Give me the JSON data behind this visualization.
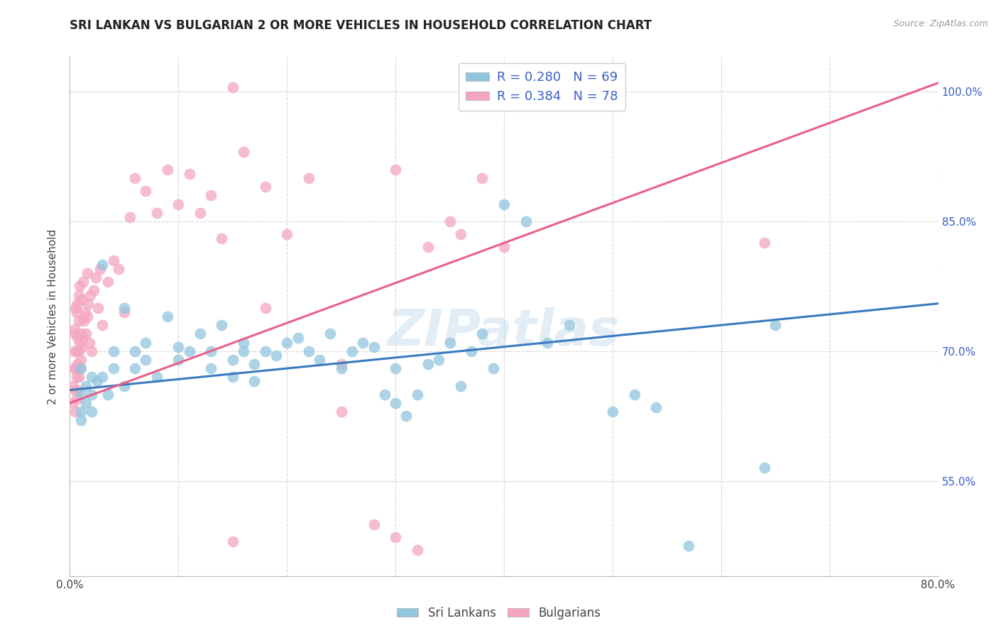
{
  "title": "SRI LANKAN VS BULGARIAN 2 OR MORE VEHICLES IN HOUSEHOLD CORRELATION CHART",
  "source": "Source: ZipAtlas.com",
  "ylabel_label": "2 or more Vehicles in Household",
  "watermark": "ZIPatlas",
  "legend_blue_r": "R = 0.280",
  "legend_blue_n": "N = 69",
  "legend_pink_r": "R = 0.384",
  "legend_pink_n": "N = 78",
  "legend_labels": [
    "Sri Lankans",
    "Bulgarians"
  ],
  "blue_color": "#92c5de",
  "pink_color": "#f4a6c0",
  "blue_line_color": "#3a7abf",
  "pink_line_color": "#e8608a",
  "right_axis_color": "#3a5fc8",
  "legend_text_color": "#3a5fc8",
  "background_color": "#ffffff",
  "grid_color": "#cccccc",
  "title_color": "#222222",
  "xmin": 0.0,
  "xmax": 0.8,
  "ymin": 44.0,
  "ymax": 104.0,
  "ytick_positions": [
    55.0,
    70.0,
    85.0,
    100.0
  ],
  "blue_scatter_x": [
    0.01,
    0.01,
    0.01,
    0.01,
    0.015,
    0.015,
    0.02,
    0.02,
    0.02,
    0.025,
    0.03,
    0.03,
    0.035,
    0.04,
    0.04,
    0.05,
    0.05,
    0.06,
    0.06,
    0.07,
    0.07,
    0.08,
    0.09,
    0.1,
    0.1,
    0.11,
    0.12,
    0.13,
    0.13,
    0.14,
    0.15,
    0.15,
    0.16,
    0.16,
    0.17,
    0.17,
    0.18,
    0.19,
    0.2,
    0.21,
    0.22,
    0.23,
    0.24,
    0.25,
    0.26,
    0.27,
    0.28,
    0.29,
    0.3,
    0.31,
    0.32,
    0.33,
    0.34,
    0.35,
    0.36,
    0.37,
    0.38,
    0.39,
    0.4,
    0.42,
    0.44,
    0.46,
    0.5,
    0.52,
    0.54,
    0.57,
    0.64,
    0.65,
    0.3
  ],
  "blue_scatter_y": [
    65.0,
    63.0,
    62.0,
    68.0,
    66.0,
    64.0,
    67.0,
    65.0,
    63.0,
    66.5,
    80.0,
    67.0,
    65.0,
    70.0,
    68.0,
    75.0,
    66.0,
    70.0,
    68.0,
    71.0,
    69.0,
    67.0,
    74.0,
    70.5,
    69.0,
    70.0,
    72.0,
    68.0,
    70.0,
    73.0,
    69.0,
    67.0,
    71.0,
    70.0,
    66.5,
    68.5,
    70.0,
    69.5,
    71.0,
    71.5,
    70.0,
    69.0,
    72.0,
    68.0,
    70.0,
    71.0,
    70.5,
    65.0,
    64.0,
    62.5,
    65.0,
    68.5,
    69.0,
    71.0,
    66.0,
    70.0,
    72.0,
    68.0,
    87.0,
    85.0,
    71.0,
    73.0,
    63.0,
    65.0,
    63.5,
    47.5,
    56.5,
    73.0,
    68.0
  ],
  "pink_scatter_x": [
    0.003,
    0.003,
    0.004,
    0.004,
    0.004,
    0.005,
    0.005,
    0.005,
    0.005,
    0.005,
    0.006,
    0.006,
    0.006,
    0.006,
    0.007,
    0.007,
    0.007,
    0.007,
    0.008,
    0.008,
    0.008,
    0.008,
    0.009,
    0.009,
    0.009,
    0.01,
    0.01,
    0.011,
    0.011,
    0.012,
    0.012,
    0.013,
    0.014,
    0.015,
    0.016,
    0.016,
    0.017,
    0.018,
    0.019,
    0.02,
    0.022,
    0.024,
    0.026,
    0.028,
    0.03,
    0.035,
    0.04,
    0.045,
    0.05,
    0.055,
    0.06,
    0.07,
    0.08,
    0.09,
    0.1,
    0.11,
    0.12,
    0.13,
    0.14,
    0.15,
    0.16,
    0.18,
    0.2,
    0.22,
    0.25,
    0.28,
    0.3,
    0.32,
    0.33,
    0.35,
    0.36,
    0.38,
    0.4,
    0.64,
    0.25,
    0.3,
    0.15,
    0.18
  ],
  "pink_scatter_y": [
    64.0,
    66.0,
    68.0,
    72.5,
    70.0,
    63.0,
    65.5,
    68.0,
    72.0,
    75.0,
    64.5,
    67.0,
    70.0,
    74.5,
    65.5,
    68.5,
    71.5,
    75.5,
    67.0,
    70.0,
    73.5,
    76.5,
    68.0,
    71.0,
    77.5,
    69.0,
    72.0,
    70.5,
    76.0,
    71.5,
    78.0,
    73.5,
    74.5,
    72.0,
    79.0,
    74.0,
    75.5,
    71.0,
    76.5,
    70.0,
    77.0,
    78.5,
    75.0,
    79.5,
    73.0,
    78.0,
    80.5,
    79.5,
    74.5,
    85.5,
    90.0,
    88.5,
    86.0,
    91.0,
    87.0,
    90.5,
    86.0,
    88.0,
    83.0,
    100.5,
    93.0,
    89.0,
    83.5,
    90.0,
    68.5,
    50.0,
    48.5,
    47.0,
    82.0,
    85.0,
    83.5,
    90.0,
    82.0,
    82.5,
    63.0,
    91.0,
    48.0,
    75.0
  ]
}
